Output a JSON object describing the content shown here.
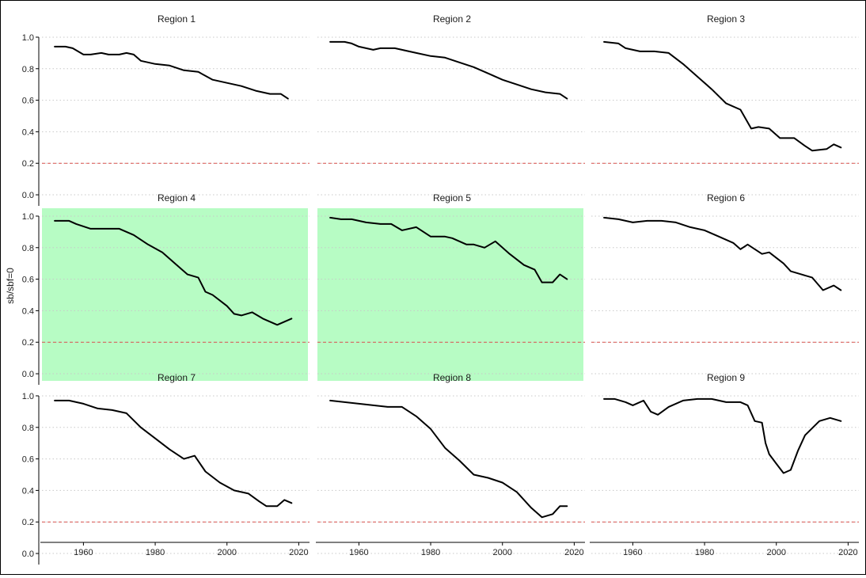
{
  "chart_data": {
    "type": "line",
    "layout": "3x3 facets",
    "ylabel": "sb/sbf=0",
    "xlabel": "",
    "xlim": [
      1950,
      2020
    ],
    "ylim": [
      0,
      1
    ],
    "xticks": [
      1960,
      1980,
      2000,
      2020
    ],
    "yticks": [
      0.0,
      0.2,
      0.4,
      0.6,
      0.8,
      1.0
    ],
    "ytick_labels": [
      "0.0",
      "0.2",
      "0.4",
      "0.6",
      "0.8",
      "1.0"
    ],
    "reference_line": {
      "y": 0.2,
      "style": "dashed",
      "color": "#d9534f"
    },
    "grid": "horizontal dotted",
    "line_color": "#000000",
    "highlight_color": "#b7fcc4",
    "panels": [
      {
        "title": "Region 1",
        "highlighted": false,
        "x": [
          1952,
          1955,
          1957,
          1960,
          1962,
          1965,
          1967,
          1970,
          1972,
          1974,
          1976,
          1980,
          1984,
          1988,
          1992,
          1996,
          2000,
          2004,
          2008,
          2012,
          2015,
          2017
        ],
        "y": [
          0.94,
          0.94,
          0.93,
          0.89,
          0.89,
          0.9,
          0.89,
          0.89,
          0.9,
          0.89,
          0.85,
          0.83,
          0.82,
          0.79,
          0.78,
          0.73,
          0.71,
          0.69,
          0.66,
          0.64,
          0.64,
          0.61
        ]
      },
      {
        "title": "Region 2",
        "highlighted": false,
        "x": [
          1952,
          1956,
          1958,
          1960,
          1964,
          1966,
          1970,
          1972,
          1976,
          1980,
          1984,
          1988,
          1992,
          1996,
          2000,
          2004,
          2008,
          2012,
          2016,
          2018
        ],
        "y": [
          0.97,
          0.97,
          0.96,
          0.94,
          0.92,
          0.93,
          0.93,
          0.92,
          0.9,
          0.88,
          0.87,
          0.84,
          0.81,
          0.77,
          0.73,
          0.7,
          0.67,
          0.65,
          0.64,
          0.61
        ]
      },
      {
        "title": "Region 3",
        "highlighted": false,
        "x": [
          1952,
          1956,
          1958,
          1962,
          1966,
          1970,
          1974,
          1978,
          1982,
          1986,
          1990,
          1993,
          1995,
          1998,
          2001,
          2005,
          2008,
          2010,
          2014,
          2016,
          2018
        ],
        "y": [
          0.97,
          0.96,
          0.93,
          0.91,
          0.91,
          0.9,
          0.83,
          0.75,
          0.67,
          0.58,
          0.54,
          0.42,
          0.43,
          0.42,
          0.36,
          0.36,
          0.31,
          0.28,
          0.29,
          0.32,
          0.3
        ]
      },
      {
        "title": "Region 4",
        "highlighted": true,
        "x": [
          1952,
          1956,
          1958,
          1962,
          1966,
          1970,
          1974,
          1978,
          1982,
          1986,
          1989,
          1992,
          1994,
          1996,
          2000,
          2002,
          2004,
          2007,
          2010,
          2014,
          2018
        ],
        "y": [
          0.97,
          0.97,
          0.95,
          0.92,
          0.92,
          0.92,
          0.88,
          0.82,
          0.77,
          0.69,
          0.63,
          0.61,
          0.52,
          0.5,
          0.43,
          0.38,
          0.37,
          0.39,
          0.35,
          0.31,
          0.35
        ]
      },
      {
        "title": "Region 5",
        "highlighted": true,
        "x": [
          1952,
          1955,
          1958,
          1962,
          1966,
          1969,
          1972,
          1976,
          1980,
          1984,
          1986,
          1990,
          1992,
          1995,
          1998,
          2002,
          2006,
          2009,
          2011,
          2014,
          2016,
          2018
        ],
        "y": [
          0.99,
          0.98,
          0.98,
          0.96,
          0.95,
          0.95,
          0.91,
          0.93,
          0.87,
          0.87,
          0.86,
          0.82,
          0.82,
          0.8,
          0.84,
          0.76,
          0.69,
          0.66,
          0.58,
          0.58,
          0.63,
          0.6
        ]
      },
      {
        "title": "Region 6",
        "highlighted": false,
        "x": [
          1952,
          1956,
          1960,
          1964,
          1968,
          1972,
          1976,
          1980,
          1984,
          1988,
          1990,
          1992,
          1996,
          1998,
          2002,
          2004,
          2007,
          2010,
          2013,
          2016,
          2018
        ],
        "y": [
          0.99,
          0.98,
          0.96,
          0.97,
          0.97,
          0.96,
          0.93,
          0.91,
          0.87,
          0.83,
          0.79,
          0.82,
          0.76,
          0.77,
          0.7,
          0.65,
          0.63,
          0.61,
          0.53,
          0.56,
          0.53
        ]
      },
      {
        "title": "Region 7",
        "highlighted": false,
        "x": [
          1952,
          1956,
          1960,
          1964,
          1968,
          1972,
          1976,
          1980,
          1984,
          1988,
          1991,
          1994,
          1998,
          2002,
          2006,
          2009,
          2011,
          2014,
          2016,
          2018
        ],
        "y": [
          0.97,
          0.97,
          0.95,
          0.92,
          0.91,
          0.89,
          0.8,
          0.73,
          0.66,
          0.6,
          0.62,
          0.52,
          0.45,
          0.4,
          0.38,
          0.33,
          0.3,
          0.3,
          0.34,
          0.32
        ]
      },
      {
        "title": "Region 8",
        "highlighted": false,
        "x": [
          1952,
          1956,
          1960,
          1964,
          1968,
          1972,
          1976,
          1980,
          1984,
          1988,
          1992,
          1996,
          2000,
          2004,
          2008,
          2011,
          2014,
          2016,
          2018
        ],
        "y": [
          0.97,
          0.96,
          0.95,
          0.94,
          0.93,
          0.93,
          0.87,
          0.79,
          0.67,
          0.59,
          0.5,
          0.48,
          0.45,
          0.39,
          0.29,
          0.23,
          0.25,
          0.3,
          0.3
        ]
      },
      {
        "title": "Region 9",
        "highlighted": false,
        "x": [
          1952,
          1955,
          1958,
          1960,
          1963,
          1965,
          1967,
          1970,
          1974,
          1978,
          1982,
          1986,
          1990,
          1992,
          1994,
          1996,
          1997,
          1998,
          2000,
          2002,
          2004,
          2006,
          2008,
          2012,
          2015,
          2018
        ],
        "y": [
          0.98,
          0.98,
          0.96,
          0.94,
          0.97,
          0.9,
          0.88,
          0.93,
          0.97,
          0.98,
          0.98,
          0.96,
          0.96,
          0.94,
          0.84,
          0.83,
          0.7,
          0.63,
          0.57,
          0.51,
          0.53,
          0.65,
          0.75,
          0.84,
          0.86,
          0.84
        ]
      }
    ]
  }
}
